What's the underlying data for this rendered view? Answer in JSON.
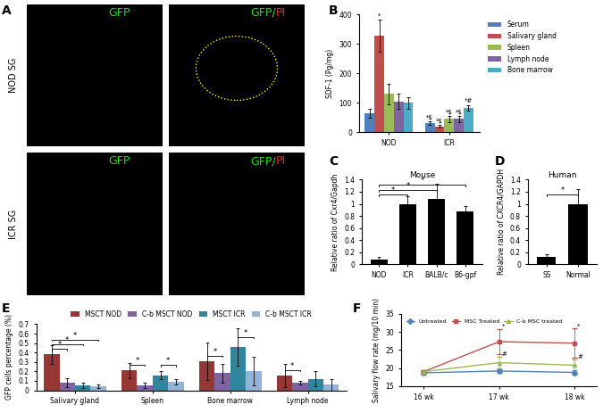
{
  "panel_a": {
    "label": "A",
    "rows": [
      "NOD SG",
      "ICR SG"
    ],
    "columns": [
      [
        {
          "text": "GFP",
          "color": "#22dd22"
        }
      ],
      [
        {
          "text": "GFP/",
          "color": "#22dd22"
        },
        {
          "text": "PI",
          "color": "#ff2020"
        }
      ]
    ]
  },
  "chart_data": [
    {
      "panel": "B",
      "type": "grouped_bar",
      "categories": [
        "NOD",
        "ICR"
      ],
      "y_label": "SDF-1 (Pg/mg)",
      "ylim": [
        0,
        400
      ],
      "yticks": [
        0,
        100,
        200,
        300,
        400
      ],
      "legend": "upper left",
      "series": [
        {
          "name": "Serum",
          "color": "#4f81bd",
          "values": [
            65,
            30
          ],
          "errors": [
            15,
            6
          ],
          "marks": [
            null,
            "*$"
          ]
        },
        {
          "name": "Salivary gland",
          "color": "#c0504d",
          "values": [
            328,
            20
          ],
          "errors": [
            55,
            5
          ],
          "marks": [
            "*",
            "*$"
          ]
        },
        {
          "name": "Spleen",
          "color": "#9bbb59",
          "values": [
            130,
            45
          ],
          "errors": [
            35,
            10
          ],
          "marks": [
            null,
            "*$"
          ]
        },
        {
          "name": "Lymph node",
          "color": "#8064a2",
          "values": [
            105,
            45
          ],
          "errors": [
            25,
            10
          ],
          "marks": [
            null,
            "*$"
          ]
        },
        {
          "name": "Bone marrow",
          "color": "#4bacc6",
          "values": [
            100,
            82
          ],
          "errors": [
            20,
            10
          ],
          "marks": [
            null,
            "*#"
          ]
        }
      ]
    },
    {
      "panel": "C",
      "type": "bar",
      "title": "Mouse",
      "categories": [
        "NOD",
        "ICR",
        "BALB/c",
        "B6-gpf"
      ],
      "values": [
        0.08,
        1,
        1.08,
        0.87
      ],
      "errors": [
        0.05,
        0.12,
        0.25,
        0.1
      ],
      "color": "#000000",
      "y_label": "Relative ratio of Cxr4/Gapdh",
      "ylim": [
        0,
        1.4
      ],
      "yticks": [
        0,
        0.2,
        0.4,
        0.6,
        0.8,
        1,
        1.2,
        1.4
      ],
      "comparisons": [
        {
          "between": [
            "NOD",
            "ICR"
          ],
          "label": "*"
        },
        {
          "between": [
            "NOD",
            "BALB/c"
          ],
          "label": "*"
        },
        {
          "between": [
            "NOD",
            "B6-gpf"
          ],
          "label": "*"
        }
      ]
    },
    {
      "panel": "D",
      "type": "bar",
      "title": "Human",
      "categories": [
        "SS",
        "Normal"
      ],
      "values": [
        0.13,
        1
      ],
      "errors": [
        0.03,
        0.25
      ],
      "color": "#000000",
      "y_label": "Relative ratio of CXCR4/GAPDH",
      "ylim": [
        0,
        1.4
      ],
      "yticks": [
        0,
        0.2,
        0.4,
        0.6,
        0.8,
        1,
        1.2,
        1.4
      ],
      "comparisons": [
        {
          "between": [
            "SS",
            "Normal"
          ],
          "label": "*"
        }
      ]
    },
    {
      "panel": "E",
      "type": "grouped_bar",
      "categories": [
        "Salivary gland",
        "Spleen",
        "Bone marrow",
        "Lymph node"
      ],
      "y_label": "GFP cells percentage (%)",
      "ylim": [
        0,
        0.7
      ],
      "yticks": [
        0,
        0.1,
        0.2,
        0.3,
        0.4,
        0.5,
        0.6,
        0.7
      ],
      "legend": "lower center",
      "series": [
        {
          "name": "MSCT NOD",
          "color": "#953735",
          "values": [
            0.38,
            0.21,
            0.31,
            0.155
          ],
          "errors": [
            0.1,
            0.08,
            0.2,
            0.12
          ]
        },
        {
          "name": "C-b MSCT NOD",
          "color": "#8064a2",
          "values": [
            0.08,
            0.05,
            0.18,
            0.08
          ],
          "errors": [
            0.05,
            0.03,
            0.1,
            0.02
          ]
        },
        {
          "name": "MSCT ICR",
          "color": "#31859c",
          "values": [
            0.05,
            0.16,
            0.46,
            0.12
          ],
          "errors": [
            0.03,
            0.04,
            0.2,
            0.08
          ]
        },
        {
          "name": "C-b MSCT ICR",
          "color": "#95b3d7",
          "values": [
            0.04,
            0.09,
            0.2,
            0.06
          ],
          "errors": [
            0.02,
            0.03,
            0.15,
            0.06
          ]
        }
      ],
      "comparisons": [
        {
          "category": "Salivary gland",
          "between": [
            "MSCT NOD",
            "C-b MSCT NOD"
          ],
          "label": "*"
        },
        {
          "category": "Salivary gland",
          "between": [
            "MSCT NOD",
            "MSCT ICR"
          ],
          "label": "*"
        },
        {
          "category": "Salivary gland",
          "between": [
            "MSCT NOD",
            "C-b MSCT ICR"
          ],
          "label": "*"
        },
        {
          "category": "Spleen",
          "between": [
            "MSCT NOD",
            "C-b MSCT NOD"
          ],
          "label": "*"
        },
        {
          "category": "Spleen",
          "between": [
            "MSCT ICR",
            "C-b MSCT ICR"
          ],
          "label": "*"
        },
        {
          "category": "Bone marrow",
          "between": [
            "MSCT NOD",
            "C-b MSCT NOD"
          ],
          "label": "*"
        },
        {
          "category": "Bone marrow",
          "between": [
            "MSCT ICR",
            "C-b MSCT ICR"
          ],
          "label": "*"
        },
        {
          "category": "Lymph node",
          "between": [
            "MSCT NOD",
            "C-b MSCT NOD"
          ],
          "label": "*"
        }
      ]
    },
    {
      "panel": "F",
      "type": "line",
      "categories": [
        "16 wk",
        "17 wk",
        "18 wk"
      ],
      "y_label": "Salivary flow rate (mg/10 min)",
      "ylim": [
        15,
        35
      ],
      "yticks": [
        15,
        20,
        25,
        30,
        35
      ],
      "legend": "upper left",
      "series": [
        {
          "name": "Untreated",
          "color": "#4f81bd",
          "marker": "diamond",
          "values": [
            18.7,
            19.2,
            18.8
          ],
          "errors": [
            0.5,
            0.5,
            0.5
          ],
          "marks": [
            null,
            null,
            null
          ]
        },
        {
          "name": "MSC Treated",
          "color": "#c0504d",
          "marker": "square",
          "values": [
            19,
            27.3,
            26.9
          ],
          "errors": [
            0.5,
            3.5,
            4
          ],
          "marks": [
            null,
            "*",
            "*"
          ]
        },
        {
          "name": "C-b MSC treated",
          "color": "#9bbb59",
          "marker": "triangle",
          "values": [
            19,
            21.5,
            20.8
          ],
          "errors": [
            0.5,
            1.5,
            1.5
          ],
          "marks": [
            null,
            "#",
            "#"
          ]
        }
      ]
    }
  ]
}
